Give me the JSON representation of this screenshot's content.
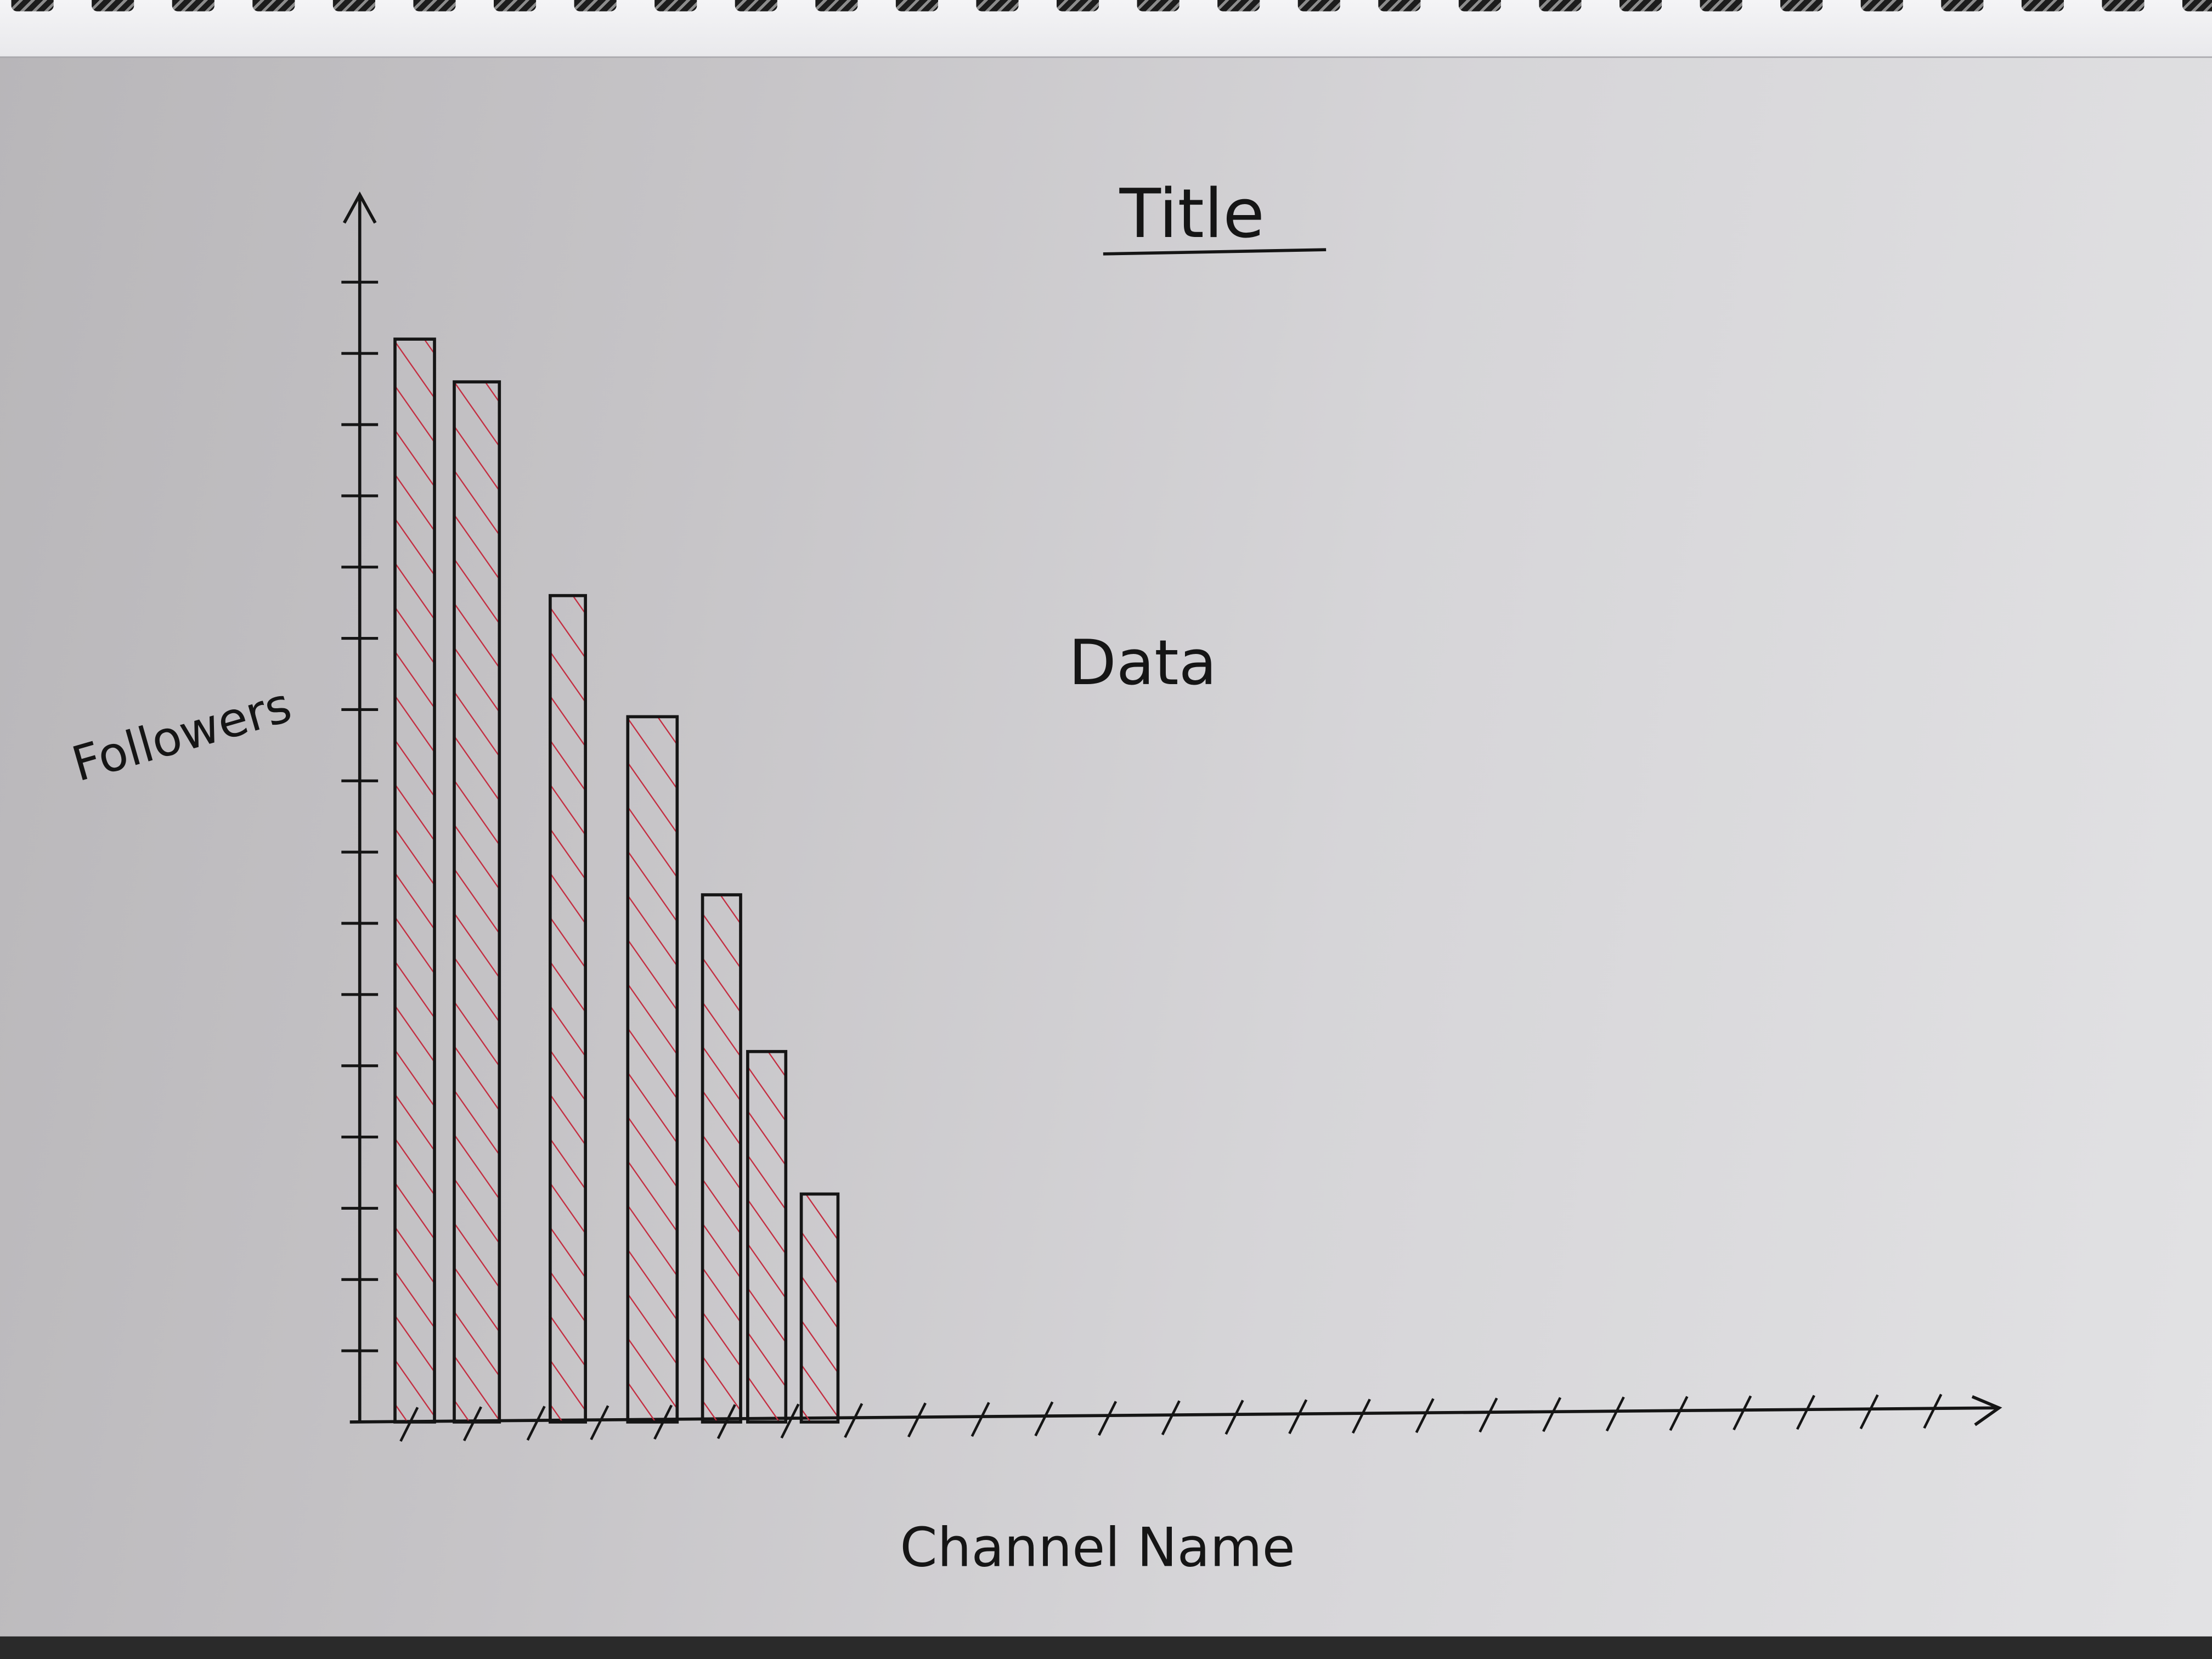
{
  "chart_data": {
    "type": "bar",
    "title": "Title",
    "annotation": "Data",
    "xlabel": "Channel Name",
    "ylabel": "Followers",
    "ylim": [
      0,
      16
    ],
    "categories": [
      "",
      "",
      "",
      "",
      "",
      "",
      ""
    ],
    "values": [
      15.2,
      14.6,
      11.6,
      9.9,
      7.4,
      5.2,
      3.2
    ],
    "grid": false,
    "legend": "none",
    "colors": {
      "ink": "#151515",
      "hatch": "#c42a3e",
      "paper": "#d4d3d6"
    }
  }
}
